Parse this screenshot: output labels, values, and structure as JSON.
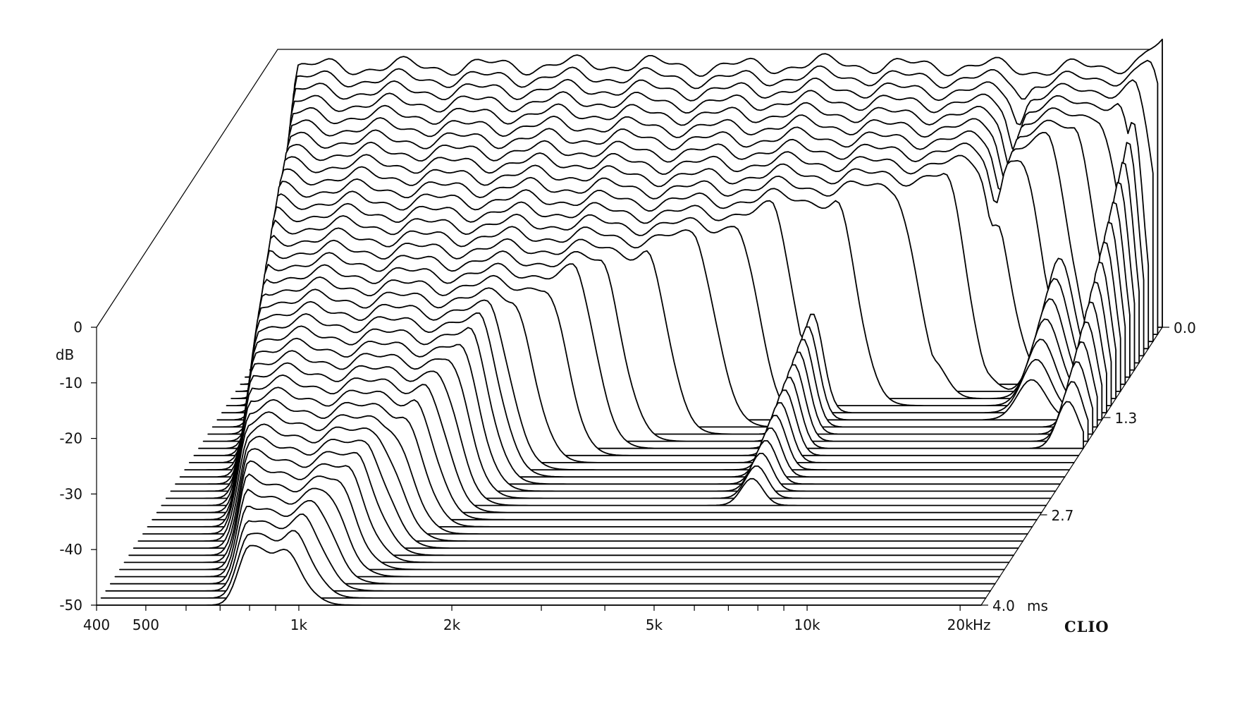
{
  "chart_data": {
    "type": "waterfall",
    "title": "",
    "brand": "CLIO",
    "colors": {
      "line": "#000000",
      "fill": "#ffffff"
    },
    "x_axis": {
      "scale": "log",
      "range": [
        400,
        22000
      ],
      "unit": "Hz",
      "tick_values": [
        400,
        500,
        600,
        700,
        800,
        900,
        1000,
        2000,
        3000,
        4000,
        5000,
        6000,
        7000,
        8000,
        9000,
        10000,
        20000
      ],
      "labels": [
        {
          "value": 400,
          "text": "400"
        },
        {
          "value": 500,
          "text": "500"
        },
        {
          "value": 1000,
          "text": "1k"
        },
        {
          "value": 2000,
          "text": "2k"
        },
        {
          "value": 5000,
          "text": "5k"
        },
        {
          "value": 10000,
          "text": "10k"
        },
        {
          "value": 20000,
          "text": "20k"
        }
      ]
    },
    "y_axis": {
      "range": [
        -50,
        0
      ],
      "unit": "dB",
      "labels": [
        "0",
        "-10",
        "-20",
        "-30",
        "-40",
        "-50"
      ],
      "values": [
        0,
        -10,
        -20,
        -30,
        -40,
        -50
      ]
    },
    "z_axis": {
      "range": [
        0,
        4.0
      ],
      "unit": "ms",
      "labels": [
        {
          "value": 0.0,
          "text": "0.0"
        },
        {
          "value": 1.3,
          "text": "1.3"
        },
        {
          "value": 2.7,
          "text": "2.7"
        },
        {
          "value": 4.0,
          "text": "4.0"
        }
      ]
    },
    "slice_count": 40,
    "base_response_db": [
      [
        400,
        -3.2
      ],
      [
        1000,
        -3.0
      ],
      [
        2000,
        -2.6
      ],
      [
        3000,
        -3.2
      ],
      [
        5000,
        -2.5
      ],
      [
        7000,
        -3.0
      ],
      [
        10000,
        -3.0
      ],
      [
        12000,
        -3.6
      ],
      [
        17000,
        -3.2
      ],
      [
        20000,
        -1.8
      ],
      [
        22000,
        1.0
      ]
    ],
    "decay_low_cutoff_hz": [
      [
        0.0,
        440
      ],
      [
        0.3,
        460
      ],
      [
        0.6,
        480
      ],
      [
        1.0,
        500
      ],
      [
        1.5,
        530
      ],
      [
        2.0,
        560
      ],
      [
        2.5,
        600
      ],
      [
        3.0,
        650
      ],
      [
        3.5,
        720
      ],
      [
        4.0,
        800
      ]
    ],
    "decay_high_cutoff_hz": [
      [
        0.0,
        22000
      ],
      [
        0.4,
        18000
      ],
      [
        0.8,
        12000
      ],
      [
        1.2,
        5000
      ],
      [
        1.6,
        2500
      ],
      [
        2.0,
        1600
      ],
      [
        2.5,
        1400
      ],
      [
        3.0,
        1200
      ],
      [
        3.5,
        1050
      ],
      [
        4.0,
        900
      ]
    ],
    "resonances": [
      {
        "freq": 1450,
        "db": -14,
        "decay_ms": 1.6,
        "width": 0.08
      },
      {
        "freq": 2500,
        "db": -16,
        "decay_ms": 1.5,
        "width": 0.06
      },
      {
        "freq": 3900,
        "db": -17,
        "decay_ms": 1.3,
        "width": 0.05
      },
      {
        "freq": 5800,
        "db": -20,
        "decay_ms": 2.6,
        "width": 0.03
      },
      {
        "freq": 9500,
        "db": -15,
        "decay_ms": 1.1,
        "width": 0.04
      },
      {
        "freq": 16000,
        "db": -12,
        "decay_ms": 1.4,
        "width": 0.04
      },
      {
        "freq": 20500,
        "db": -2,
        "decay_ms": 1.8,
        "width": 0.03
      }
    ],
    "notch_hz": 12000
  }
}
